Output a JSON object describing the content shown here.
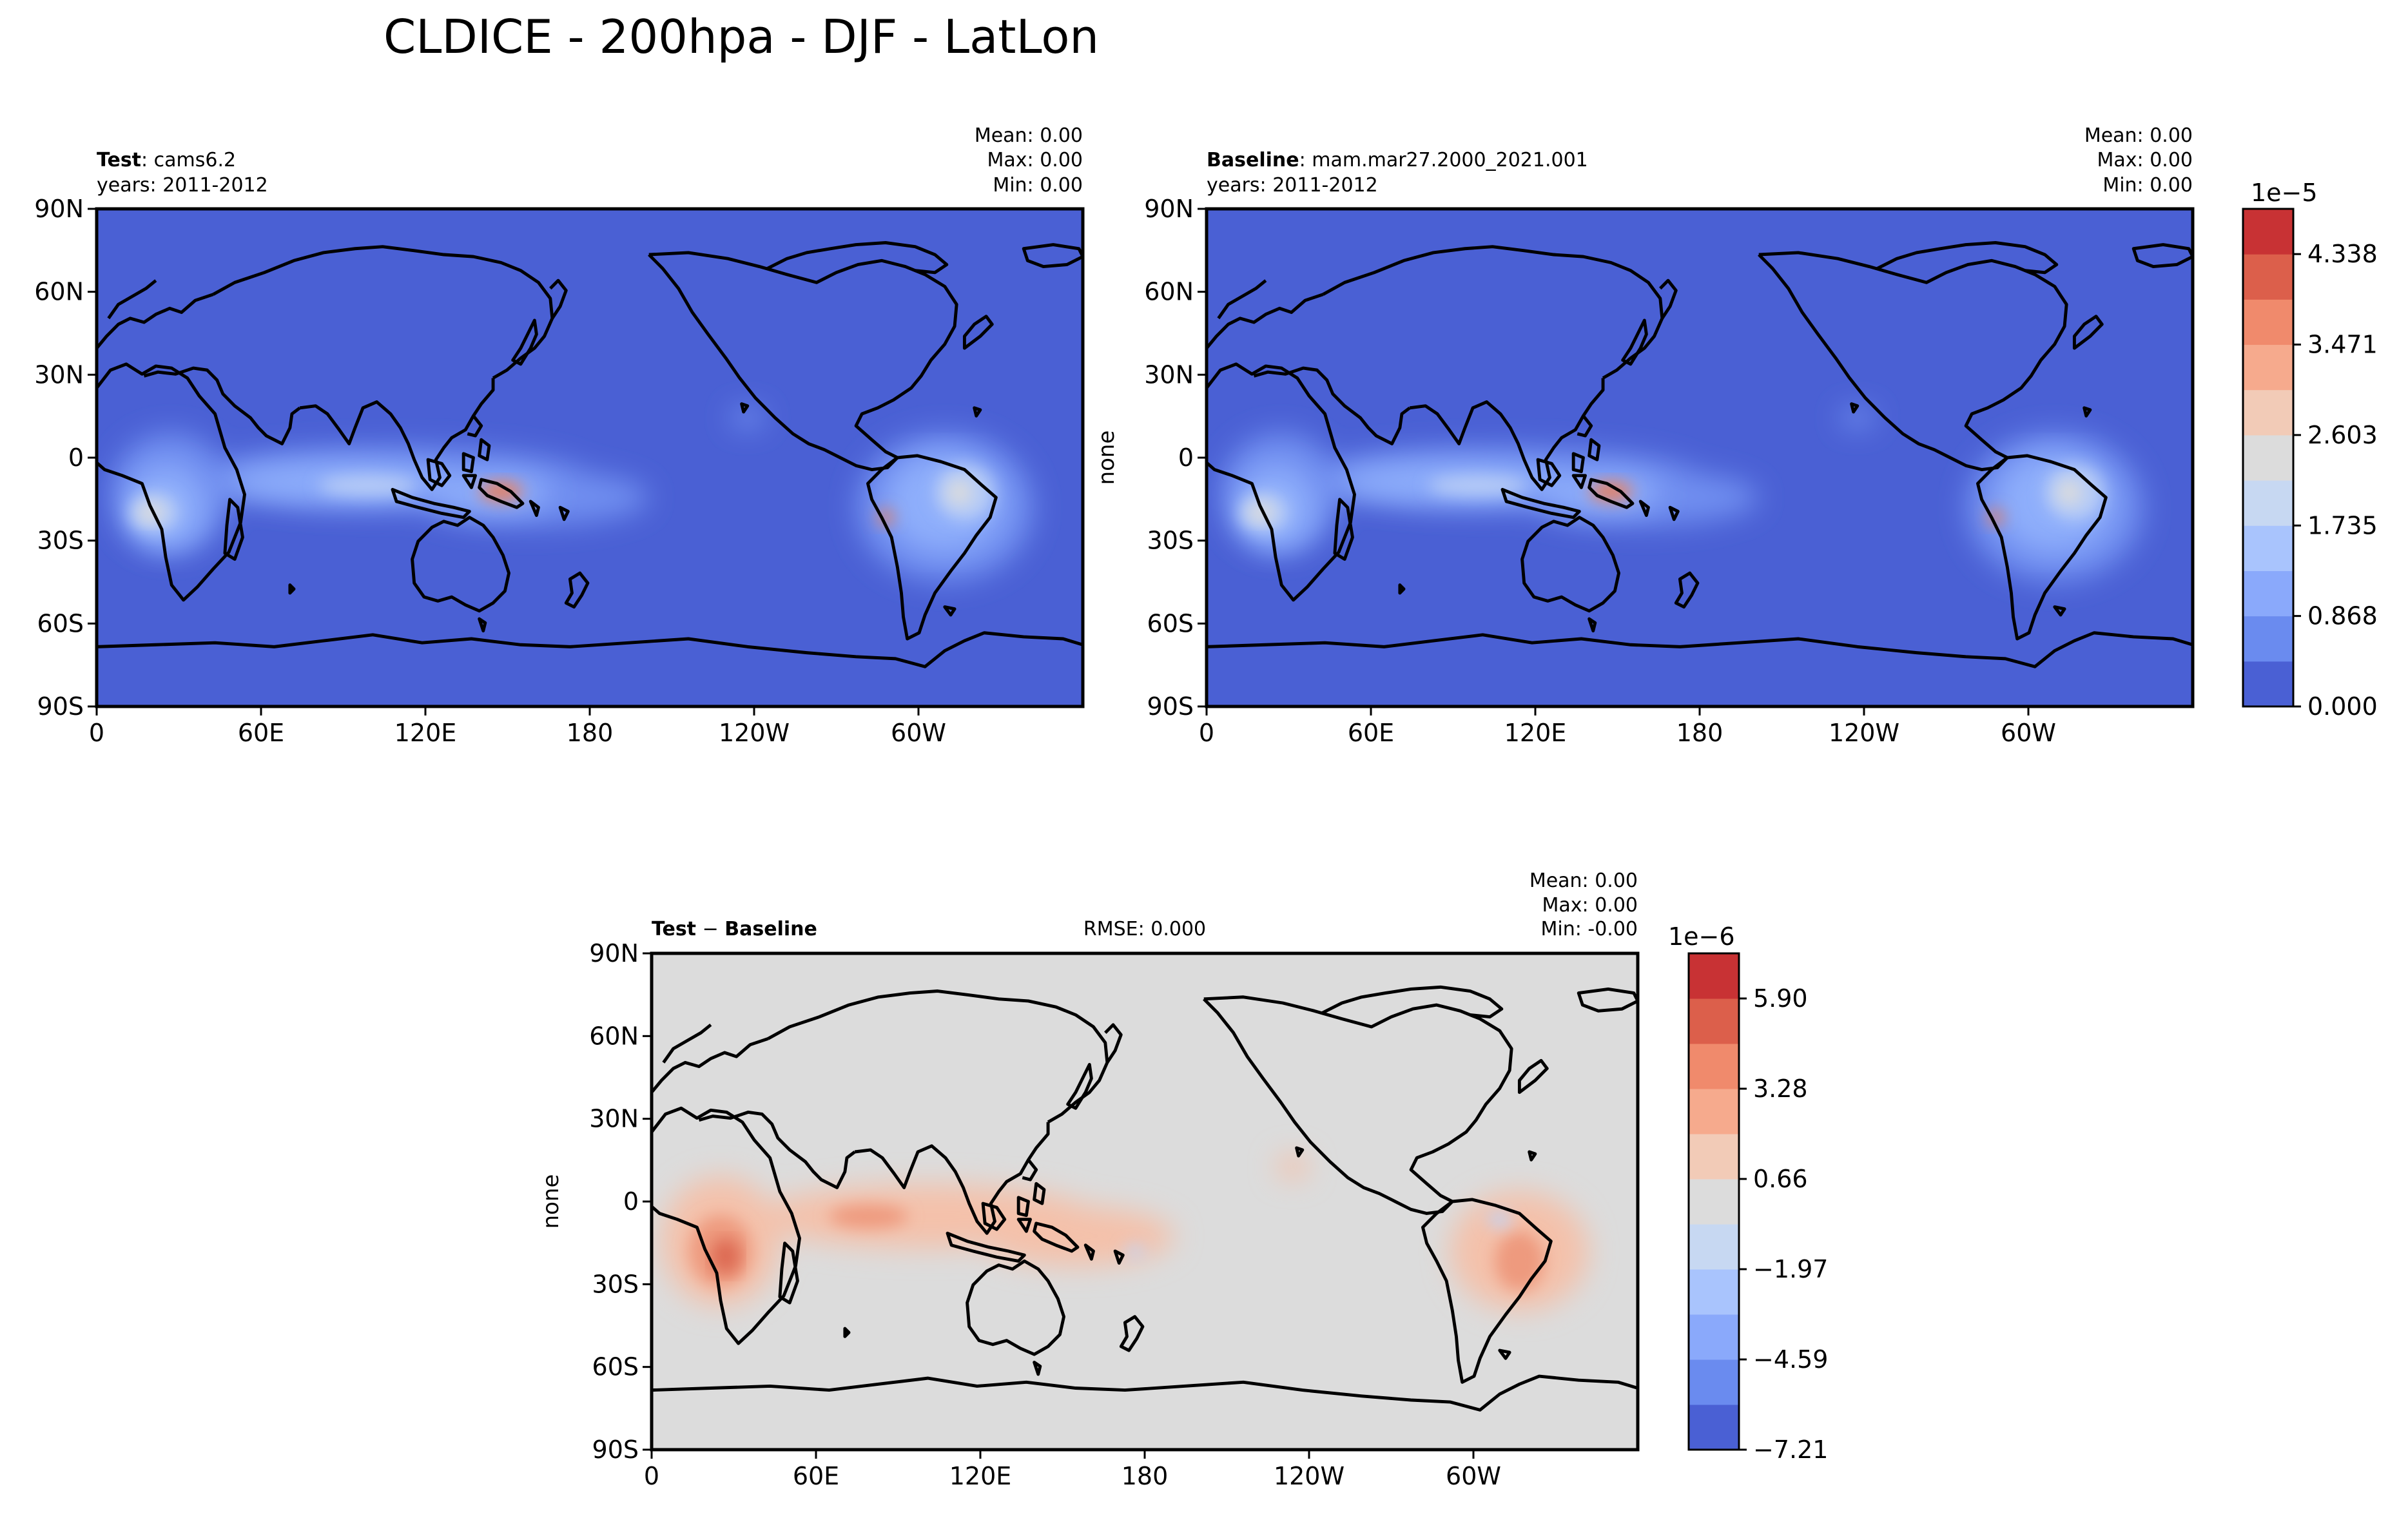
{
  "figure": {
    "title": "CLDICE - 200hpa - DJF - LatLon"
  },
  "chart_data": [
    {
      "type": "heatmap",
      "panel": "test",
      "label_bold": "Test",
      "label_rest": ": cams6.2",
      "years": "years: 2011-2012",
      "ylabel": "",
      "stats": [
        "Mean:  0.00",
        "Max:  0.00",
        "Min:  0.00"
      ],
      "x_ticks": [
        "0",
        "60E",
        "120E",
        "180",
        "120W",
        "60W"
      ],
      "y_ticks": [
        "90N",
        "60N",
        "30N",
        "0",
        "30S",
        "60S",
        "90S"
      ],
      "xlim": [
        0,
        360
      ],
      "ylim": [
        -90,
        90
      ],
      "background_color": "#4a60d4"
    },
    {
      "type": "heatmap",
      "panel": "baseline",
      "label_bold": "Baseline",
      "label_rest": ": mam.mar27.2000_2021.001",
      "years": "years: 2011-2012",
      "ylabel": "none",
      "stats": [
        "Mean:  0.00",
        "Max:  0.00",
        "Min:  0.00"
      ],
      "x_ticks": [
        "0",
        "60E",
        "120E",
        "180",
        "120W",
        "60W"
      ],
      "y_ticks": [
        "90N",
        "60N",
        "30N",
        "0",
        "30S",
        "60S",
        "90S"
      ],
      "xlim": [
        0,
        360
      ],
      "ylim": [
        -90,
        90
      ],
      "background_color": "#4a60d4"
    },
    {
      "type": "heatmap",
      "panel": "diff",
      "label_bold": "Test",
      "label_mid": " − ",
      "label_bold2": "Baseline",
      "rmse": "RMSE: 0.000",
      "ylabel": "none",
      "stats": [
        "Mean:  0.00",
        "Max:  0.00",
        "Min: -0.00"
      ],
      "x_ticks": [
        "0",
        "60E",
        "120E",
        "180",
        "120W",
        "60W"
      ],
      "y_ticks": [
        "90N",
        "60N",
        "30N",
        "0",
        "30S",
        "60S",
        "90S"
      ],
      "xlim": [
        0,
        360
      ],
      "ylim": [
        -90,
        90
      ],
      "background_color": "#dcdcdc"
    }
  ],
  "colorbars": {
    "top": {
      "exponent": "1e−5",
      "ticks": [
        "4.338",
        "3.471",
        "2.603",
        "1.735",
        "0.868",
        "0.000"
      ],
      "colors": [
        "#4a60d4",
        "#6a8bef",
        "#8aa9fb",
        "#a9c4fd",
        "#c7d8f2",
        "#dcdcdc",
        "#f2cbb7",
        "#f6aa8d",
        "#f08a6c",
        "#dc5f4b",
        "#c83234"
      ]
    },
    "bottom": {
      "exponent": "1e−6",
      "ticks": [
        "5.90",
        "3.28",
        "0.66",
        "−1.97",
        "−4.59",
        "−7.21"
      ],
      "colors": [
        "#4a60d4",
        "#6a8bef",
        "#8aa9fb",
        "#a9c4fd",
        "#c7d8f2",
        "#dcdcdc",
        "#f2cbb7",
        "#f6aa8d",
        "#f08a6c",
        "#dc5f4b",
        "#c83234"
      ]
    }
  }
}
